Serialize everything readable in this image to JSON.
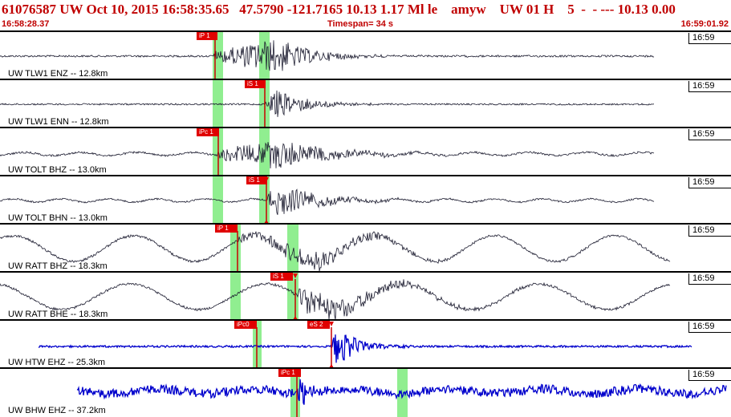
{
  "header": {
    "title": "61076587 UW Oct 10, 2015 16:58:35.65   47.5790 -121.7165 10.13 1.17 Ml le    amyw    UW 01 H    5  -  - --- 10.13 0.00",
    "start_time": "16:58:28.37",
    "timespan": "Timespan=  34 s",
    "end_time": "16:59:01.92"
  },
  "colors": {
    "title_text": "#c00000",
    "trace_dark": "#1a1a2e",
    "trace_blue": "#0000cc",
    "pick_flag": "#e00000",
    "pick_line": "#c80000",
    "pick_window": "#90ee90"
  },
  "channels": [
    {
      "label": "UW TLW1 ENZ -- 12.8km",
      "time": "16:59",
      "trace_color": "dark",
      "picks": [
        {
          "label": "iP 1"
        }
      ]
    },
    {
      "label": "UW TLW1 ENN -- 12.8km",
      "time": "16:59",
      "trace_color": "dark",
      "picks": [
        {
          "label": "iS 1"
        }
      ]
    },
    {
      "label": "UW TOLT BHZ -- 13.0km",
      "time": "16:59",
      "trace_color": "dark",
      "picks": [
        {
          "label": "iPc 1"
        }
      ]
    },
    {
      "label": "UW TOLT BHN -- 13.0km",
      "time": "16:59",
      "trace_color": "dark",
      "picks": [
        {
          "label": "iS 1"
        }
      ]
    },
    {
      "label": "UW RATT BHZ -- 18.3km",
      "time": "16:59",
      "trace_color": "dark",
      "picks": [
        {
          "label": "iP 1"
        }
      ]
    },
    {
      "label": "UW RATT BHE -- 18.3km",
      "time": "16:59",
      "trace_color": "dark",
      "picks": [
        {
          "label": "iS 1"
        }
      ]
    },
    {
      "label": "UW HTW EHZ -- 25.3km",
      "time": "16:59",
      "trace_color": "blue",
      "picks": [
        {
          "label": "iPc0"
        },
        {
          "label": "eS 2"
        }
      ]
    },
    {
      "label": "UW BHW EHZ -- 37.2km",
      "time": "16:59",
      "trace_color": "blue",
      "picks": [
        {
          "label": "iPc 1"
        }
      ]
    }
  ]
}
